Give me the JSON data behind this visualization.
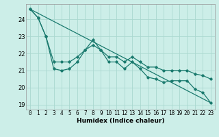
{
  "title": "",
  "xlabel": "Humidex (Indice chaleur)",
  "bg_color": "#cceee8",
  "line_color": "#1a7a6e",
  "grid_color": "#aad8d0",
  "xlim": [
    -0.5,
    23.5
  ],
  "ylim": [
    18.7,
    24.9
  ],
  "yticks": [
    19,
    20,
    21,
    22,
    23,
    24
  ],
  "xticks": [
    0,
    1,
    2,
    3,
    4,
    5,
    6,
    7,
    8,
    9,
    10,
    11,
    12,
    13,
    14,
    15,
    16,
    17,
    18,
    19,
    20,
    21,
    22,
    23
  ],
  "line1_x": [
    0,
    1,
    2,
    3,
    4,
    5,
    6,
    7,
    8,
    9,
    10,
    11,
    12,
    13,
    14,
    15,
    16,
    17,
    18,
    19,
    20,
    21,
    22,
    23
  ],
  "line1_y": [
    24.6,
    24.1,
    23.0,
    21.1,
    21.0,
    21.1,
    21.5,
    22.2,
    22.8,
    22.2,
    21.5,
    21.5,
    21.1,
    21.5,
    21.1,
    20.6,
    20.5,
    20.3,
    20.4,
    20.4,
    20.4,
    19.9,
    19.7,
    19.1
  ],
  "line2_x": [
    0,
    1,
    2,
    3,
    4,
    5,
    6,
    7,
    8,
    9,
    10,
    11,
    12,
    13,
    14,
    15,
    16,
    17,
    18,
    19,
    20,
    21,
    22,
    23
  ],
  "line2_y": [
    24.6,
    24.1,
    23.0,
    21.5,
    21.5,
    21.5,
    21.8,
    22.2,
    22.5,
    22.2,
    21.8,
    21.8,
    21.5,
    21.8,
    21.5,
    21.2,
    21.2,
    21.0,
    21.0,
    21.0,
    21.0,
    20.8,
    20.7,
    20.5
  ],
  "line3_x": [
    0,
    23
  ],
  "line3_y": [
    24.6,
    19.1
  ],
  "tick_fontsize": 5.5,
  "xlabel_fontsize": 6.5
}
